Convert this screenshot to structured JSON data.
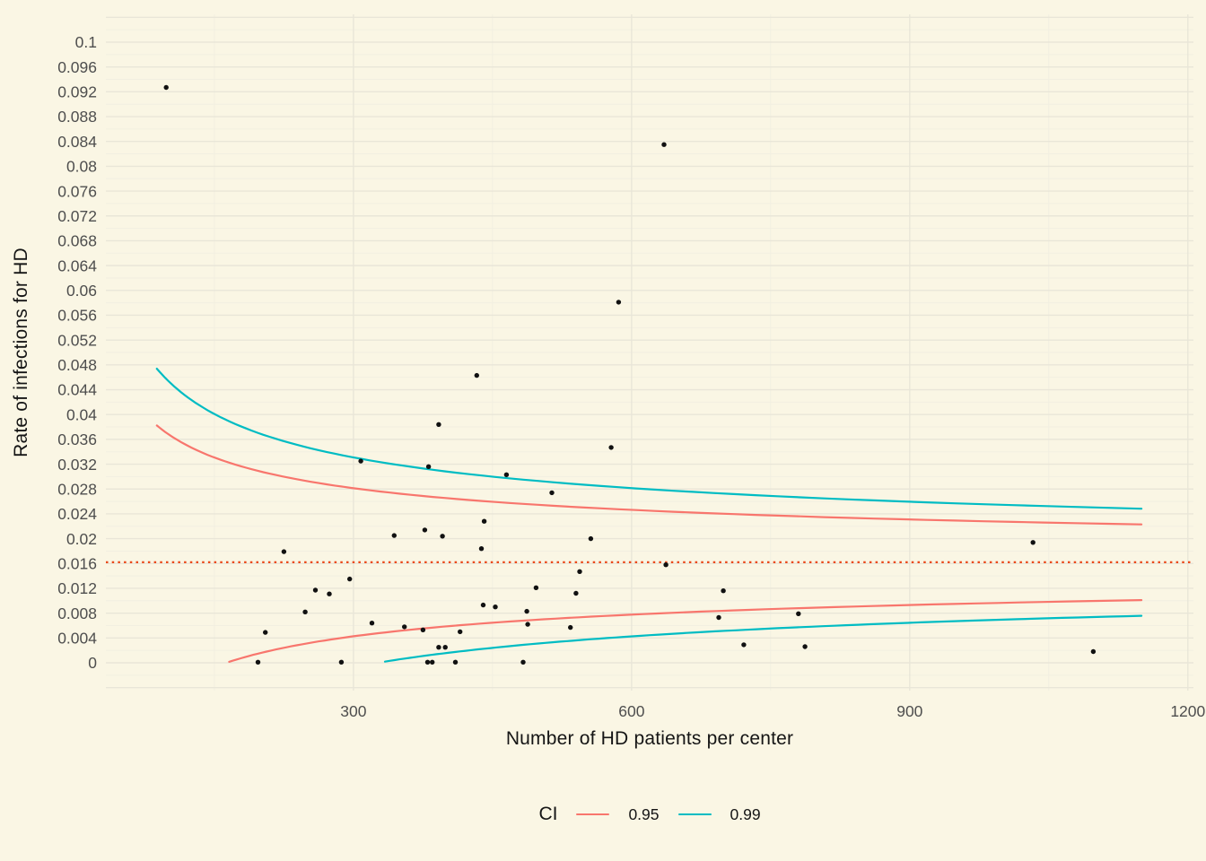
{
  "chart_data": {
    "type": "scatter",
    "title": "",
    "xlabel": "Number of HD patients per center",
    "ylabel": "Rate of infections for HD",
    "xlim": [
      33,
      1206
    ],
    "ylim": [
      -0.00448,
      0.10448
    ],
    "grid": "major and minor, no axis lines, no ticks (theme_minimal on cream background)",
    "x_ticks": {
      "values": [
        300,
        600,
        900,
        1200
      ],
      "labels": [
        "300",
        "600",
        "900",
        "1200"
      ],
      "minor": [
        150,
        450,
        750,
        1050
      ]
    },
    "y_ticks": {
      "values": [
        0,
        0.004,
        0.008,
        0.012,
        0.016,
        0.02,
        0.024,
        0.028,
        0.032,
        0.036,
        0.04,
        0.044,
        0.048,
        0.052,
        0.056,
        0.06,
        0.064,
        0.068,
        0.072,
        0.076,
        0.08,
        0.084,
        0.088,
        0.092,
        0.096,
        0.1
      ],
      "labels": [
        "0",
        "0.004",
        "0.008",
        "0.012",
        "0.016",
        "0.02",
        "0.024",
        "0.028",
        "0.032",
        "0.036",
        "0.04",
        "0.044",
        "0.048",
        "0.052",
        "0.056",
        "0.06",
        "0.064",
        "0.068",
        "0.072",
        "0.076",
        "0.08",
        "0.084",
        "0.088",
        "0.092",
        "0.096",
        "0.1"
      ],
      "unlabeled_major": [
        -0.004,
        0.104
      ],
      "minor_step_offset": 0.002
    },
    "reference_line": {
      "y": 0.0162,
      "style": "dotted",
      "color": "#EA4A1B"
    },
    "points": [
      [
        98,
        0.0927
      ],
      [
        635,
        0.0835
      ],
      [
        586,
        0.0581
      ],
      [
        433,
        0.0463
      ],
      [
        392,
        0.0384
      ],
      [
        578,
        0.0347
      ],
      [
        308,
        0.0325
      ],
      [
        381,
        0.0316
      ],
      [
        465,
        0.0303
      ],
      [
        514,
        0.0274
      ],
      [
        441,
        0.0228
      ],
      [
        377,
        0.0214
      ],
      [
        344,
        0.0205
      ],
      [
        396,
        0.0204
      ],
      [
        556,
        0.02
      ],
      [
        1033,
        0.0194
      ],
      [
        438,
        0.0184
      ],
      [
        225,
        0.0179
      ],
      [
        637,
        0.0158
      ],
      [
        544,
        0.0147
      ],
      [
        296,
        0.0135
      ],
      [
        497,
        0.0121
      ],
      [
        259,
        0.0117
      ],
      [
        699,
        0.0116
      ],
      [
        540,
        0.0112
      ],
      [
        274,
        0.0111
      ],
      [
        440,
        0.0093
      ],
      [
        453,
        0.009
      ],
      [
        487,
        0.0083
      ],
      [
        248,
        0.0082
      ],
      [
        780,
        0.0079
      ],
      [
        694,
        0.0073
      ],
      [
        320,
        0.0064
      ],
      [
        488,
        0.0062
      ],
      [
        355,
        0.0058
      ],
      [
        534,
        0.0057
      ],
      [
        375,
        0.0053
      ],
      [
        415,
        0.005
      ],
      [
        205,
        0.0049
      ],
      [
        721,
        0.0029
      ],
      [
        787,
        0.0026
      ],
      [
        392,
        0.0025
      ],
      [
        399,
        0.0025
      ],
      [
        1098,
        0.0018
      ],
      [
        197,
        0.0001
      ],
      [
        287,
        0.0001
      ],
      [
        380,
        0.0001
      ],
      [
        385,
        0.0001
      ],
      [
        410,
        0.0001
      ],
      [
        483,
        0.0001
      ]
    ],
    "funnel": {
      "theta": 0.0162,
      "variance_k": 0.0129,
      "n_end": 1150,
      "curves": [
        {
          "ci": "0.95",
          "z": 1.82,
          "color": "#F8766D",
          "upper_start": 88,
          "lower_start": 166
        },
        {
          "ci": "0.99",
          "z": 2.576,
          "color": "#00BCC3",
          "upper_start": 88,
          "lower_start": 334
        }
      ]
    },
    "legend": {
      "title": "CI",
      "position": "bottom-center",
      "items": [
        {
          "label": "0.95",
          "color": "#F8766D"
        },
        {
          "label": "0.99",
          "color": "#00BCC3"
        }
      ]
    },
    "colors": {
      "background": "#FAF6E4",
      "grid_major": "#E9E6D8",
      "grid_minor": "#F2EFE1",
      "point": "#111111",
      "tick_label": "#4E4E4E",
      "axis_title": "#151515"
    }
  }
}
